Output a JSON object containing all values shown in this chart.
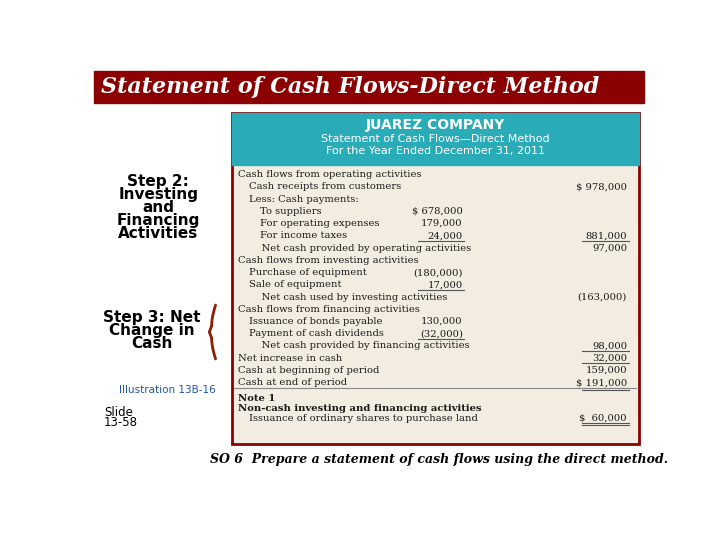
{
  "title": "Statement of Cash Flows-Direct Method",
  "title_bg": "#8B0000",
  "title_color": "#FFFFFF",
  "company_name": "JUAREZ COMPANY",
  "subtitle1": "Statement of Cash Flows—Direct Method",
  "subtitle2": "For the Year Ended December 31, 2011",
  "header_bg": "#2AACB8",
  "table_bg": "#F2EDE0",
  "border_color": "#8B0000",
  "slide_text": "Slide\n13-58",
  "illustration_text": "Illustration 13B-16",
  "bottom_italic": "SO 6  Prepare a statement of cash flows using the direct method.",
  "rows": [
    {
      "text": "Cash flows from operating activities",
      "indent": 0,
      "col1": "",
      "col2": "",
      "type": "header"
    },
    {
      "text": "Cash receipts from customers",
      "indent": 1,
      "col1": "",
      "col2": "$ 978,000",
      "type": "normal"
    },
    {
      "text": "Less: Cash payments:",
      "indent": 1,
      "col1": "",
      "col2": "",
      "type": "normal"
    },
    {
      "text": "To suppliers",
      "indent": 2,
      "col1": "$ 678,000",
      "col2": "",
      "type": "normal"
    },
    {
      "text": "For operating expenses",
      "indent": 2,
      "col1": "179,000",
      "col2": "",
      "type": "normal"
    },
    {
      "text": "For income taxes",
      "indent": 2,
      "col1": "24,000",
      "col2": "881,000",
      "type": "underline1"
    },
    {
      "text": "    Net cash provided by operating activities",
      "indent": 1,
      "col1": "",
      "col2": "97,000",
      "type": "normal"
    },
    {
      "text": "Cash flows from investing activities",
      "indent": 0,
      "col1": "",
      "col2": "",
      "type": "header"
    },
    {
      "text": "Purchase of equipment",
      "indent": 1,
      "col1": "(180,000)",
      "col2": "",
      "type": "normal"
    },
    {
      "text": "Sale of equipment",
      "indent": 1,
      "col1": "17,000",
      "col2": "",
      "type": "underline1"
    },
    {
      "text": "    Net cash used by investing activities",
      "indent": 1,
      "col1": "",
      "col2": "(163,000)",
      "type": "normal"
    },
    {
      "text": "Cash flows from financing activities",
      "indent": 0,
      "col1": "",
      "col2": "",
      "type": "header"
    },
    {
      "text": "Issuance of bonds payable",
      "indent": 1,
      "col1": "130,000",
      "col2": "",
      "type": "normal"
    },
    {
      "text": "Payment of cash dividends",
      "indent": 1,
      "col1": "(32,000)",
      "col2": "",
      "type": "underline1"
    },
    {
      "text": "    Net cash provided by financing activities",
      "indent": 1,
      "col1": "",
      "col2": "98,000",
      "type": "underline2"
    },
    {
      "text": "Net increase in cash",
      "indent": 0,
      "col1": "",
      "col2": "32,000",
      "type": "underline2"
    },
    {
      "text": "Cash at beginning of period",
      "indent": 0,
      "col1": "",
      "col2": "159,000",
      "type": "normal"
    },
    {
      "text": "Cash at end of period",
      "indent": 0,
      "col1": "",
      "col2": "$ 191,000",
      "type": "double_underline"
    }
  ]
}
